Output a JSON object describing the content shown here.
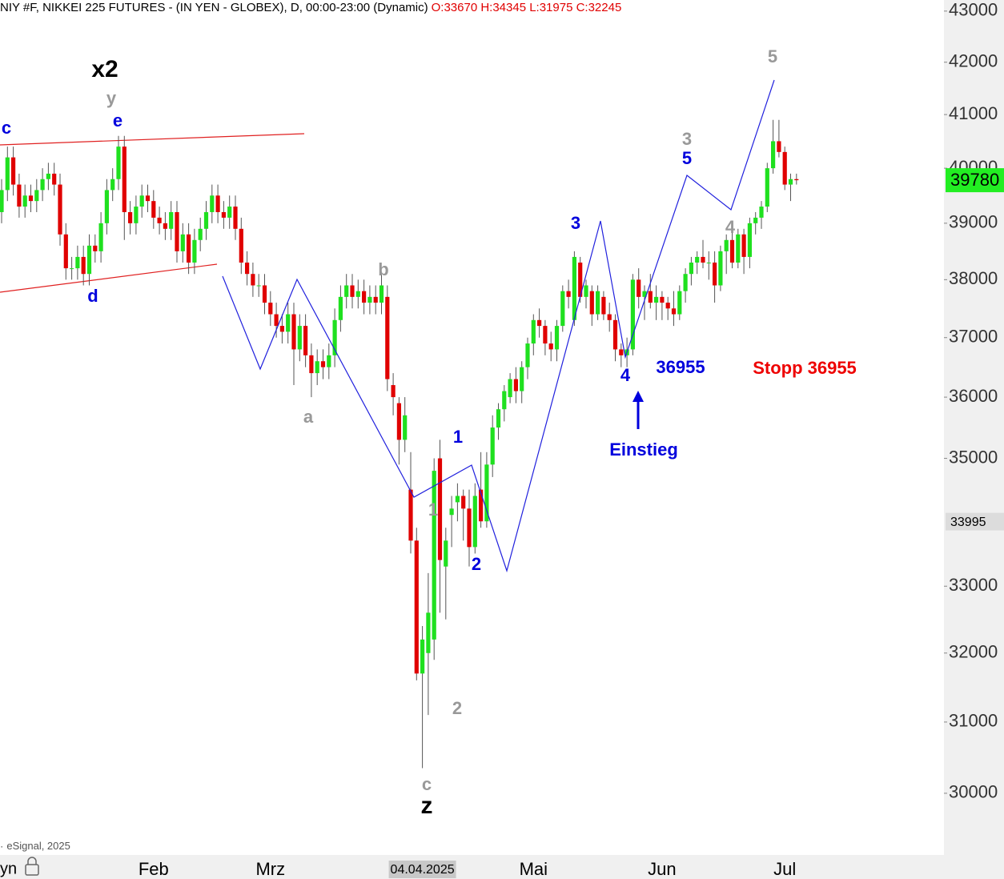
{
  "chart_data": {
    "type": "candlestick",
    "title": "NIY #F, NIKKEI 225 FUTURES - (IN YEN - GLOBEX), D, 00:00-23:00 (Dynamic)",
    "subtitle": "O:33670 H:34345 L:31975 C:32245",
    "credit": "eSignal, 2025",
    "footer_left": "yn",
    "log_scale": true,
    "grid": false,
    "up_color": "#1fe01f",
    "down_color": "#e00000",
    "ylim": [
      29160,
      43220
    ],
    "yticks": [
      30000,
      31000,
      32000,
      33000,
      35000,
      36000,
      37000,
      38000,
      39000,
      40000,
      41000,
      42000,
      43000
    ],
    "last_price": 39780,
    "last_price_color": "#22ee22",
    "marker_price": 33995,
    "categories": [
      null,
      null,
      null,
      null,
      null,
      null,
      null,
      null,
      null,
      null,
      null,
      null,
      null,
      null,
      null,
      null,
      null,
      null,
      null,
      null,
      null,
      null,
      null,
      null,
      null,
      null,
      "Feb",
      null,
      null,
      null,
      null,
      null,
      null,
      null,
      null,
      null,
      null,
      null,
      null,
      null,
      null,
      null,
      null,
      null,
      null,
      null,
      "Mrz",
      null,
      null,
      null,
      null,
      null,
      null,
      null,
      null,
      null,
      null,
      null,
      null,
      null,
      null,
      null,
      null,
      null,
      null,
      null,
      null,
      null,
      null,
      null,
      null,
      null,
      "04.04.2025",
      null,
      null,
      null,
      null,
      null,
      null,
      null,
      null,
      null,
      null,
      null,
      null,
      null,
      null,
      null,
      null,
      null,
      null,
      "Mai",
      null,
      null,
      null,
      null,
      null,
      null,
      null,
      null,
      null,
      null,
      null,
      null,
      null,
      null,
      null,
      null,
      null,
      null,
      null,
      null,
      null,
      "Jun",
      null,
      null,
      null,
      null,
      null,
      null,
      null,
      null,
      null,
      null,
      null,
      null,
      null,
      null,
      null,
      null,
      null,
      null,
      null,
      null,
      "Jul",
      null,
      null
    ],
    "open": [
      39200,
      39600,
      40200,
      39700,
      39300,
      39500,
      39400,
      39600,
      39800,
      39900,
      39700,
      38800,
      38200,
      38200,
      38400,
      38100,
      38600,
      38500,
      39000,
      39600,
      39800,
      40400,
      39200,
      39000,
      39300,
      39500,
      39400,
      39100,
      39000,
      38900,
      39200,
      38500,
      38800,
      38300,
      38700,
      38900,
      39200,
      39500,
      39200,
      39100,
      39300,
      38900,
      38300,
      38100,
      37900,
      37900,
      37600,
      37400,
      37200,
      37100,
      37400,
      36800,
      37200,
      36700,
      36400,
      36600,
      36500,
      36700,
      37300,
      37700,
      37900,
      37700,
      37800,
      37600,
      37700,
      37600,
      37700,
      36200,
      35900,
      35300,
      34500,
      33700,
      31700,
      32000,
      32200,
      35000,
      33300,
      34100,
      34300,
      34400,
      34200,
      33600,
      34500,
      34000,
      34900,
      35500,
      35800,
      36000,
      36300,
      36100,
      36500,
      36900,
      37300,
      37200,
      36900,
      36800,
      37200,
      37800,
      37300,
      38300,
      37700,
      37800,
      37400,
      37700,
      37400,
      37300,
      36800,
      36700,
      36800,
      38000,
      37700,
      37800,
      37600,
      37700,
      37600,
      37500,
      37400,
      37800,
      38100,
      38300,
      38400,
      38300,
      38300,
      37900,
      38500,
      38700,
      38300,
      38800,
      38400,
      39000,
      39100,
      39300,
      40000,
      40500,
      40300,
      39700,
      39800
    ],
    "high": [
      39800,
      40400,
      40400,
      39900,
      39700,
      39700,
      39800,
      40000,
      40100,
      40100,
      39900,
      39000,
      38400,
      38600,
      38600,
      38800,
      38800,
      39200,
      39800,
      40000,
      40600,
      40600,
      39400,
      39500,
      39700,
      39700,
      39600,
      39300,
      39200,
      39400,
      39400,
      39000,
      39000,
      38900,
      39100,
      39400,
      39700,
      39700,
      39400,
      39500,
      39500,
      39100,
      38500,
      38300,
      38100,
      38100,
      37800,
      37600,
      37400,
      37600,
      37600,
      37400,
      37400,
      36900,
      36800,
      36800,
      36900,
      37500,
      37900,
      38100,
      38100,
      38000,
      38000,
      37900,
      37900,
      38100,
      37900,
      36400,
      36000,
      36000,
      35100,
      33900,
      32400,
      33200,
      35000,
      35300,
      33900,
      34400,
      34600,
      34500,
      34500,
      34600,
      35100,
      35100,
      35700,
      35900,
      36200,
      36400,
      36500,
      36600,
      37000,
      37400,
      37500,
      37300,
      37100,
      37300,
      37900,
      38000,
      38500,
      38400,
      38000,
      37900,
      37900,
      37800,
      37600,
      37400,
      36900,
      37000,
      38100,
      38200,
      37900,
      38100,
      37900,
      37800,
      37700,
      37800,
      37900,
      38200,
      38400,
      38500,
      38700,
      38500,
      38500,
      38600,
      38800,
      38900,
      38900,
      38900,
      39100,
      39200,
      39400,
      40100,
      40900,
      40900,
      40400,
      39900,
      39900
    ],
    "low": [
      39000,
      39400,
      39500,
      39100,
      39100,
      39200,
      39200,
      39400,
      39600,
      39500,
      38600,
      38000,
      38000,
      38000,
      37900,
      37900,
      38300,
      38300,
      38800,
      39400,
      39600,
      38700,
      38800,
      38800,
      39100,
      39200,
      38900,
      38800,
      38700,
      38700,
      38300,
      38300,
      38100,
      38100,
      38500,
      38700,
      39000,
      39000,
      38900,
      38900,
      38700,
      38100,
      37900,
      37700,
      37700,
      37400,
      37200,
      37000,
      36900,
      36900,
      36200,
      36600,
      36500,
      36000,
      36200,
      36300,
      36300,
      36500,
      37100,
      37500,
      37500,
      37500,
      37400,
      37400,
      37400,
      37400,
      36100,
      35700,
      34900,
      35100,
      33500,
      31600,
      30350,
      31100,
      31900,
      32600,
      32500,
      33600,
      34000,
      33700,
      33300,
      33500,
      33900,
      33900,
      34700,
      35300,
      35600,
      35900,
      35900,
      35900,
      36300,
      36700,
      37000,
      36700,
      36600,
      36600,
      37100,
      37500,
      37200,
      37600,
      37500,
      37200,
      37300,
      37300,
      37100,
      36600,
      36500,
      36500,
      36700,
      37500,
      37300,
      37500,
      37300,
      37300,
      37300,
      37200,
      37300,
      37600,
      37900,
      38100,
      38200,
      38000,
      37600,
      37800,
      38100,
      38200,
      38200,
      38100,
      38200,
      38800,
      38900,
      39200,
      39900,
      40200,
      39600,
      39400,
      39700
    ],
    "close": [
      39600,
      40200,
      39700,
      39300,
      39500,
      39400,
      39600,
      39800,
      39900,
      39700,
      38800,
      38200,
      38200,
      38400,
      38100,
      38600,
      38500,
      39000,
      39600,
      39800,
      40400,
      39200,
      39000,
      39300,
      39500,
      39400,
      39100,
      39000,
      38900,
      39200,
      38500,
      38800,
      38300,
      38700,
      38900,
      39200,
      39500,
      39200,
      39100,
      39300,
      38900,
      38300,
      38100,
      37900,
      37900,
      37600,
      37400,
      37200,
      37100,
      37400,
      36800,
      37200,
      36700,
      36400,
      36600,
      36500,
      36700,
      37300,
      37700,
      37900,
      37700,
      37800,
      37600,
      37700,
      37600,
      37900,
      36300,
      36000,
      35300,
      35700,
      33700,
      31700,
      32200,
      32600,
      34800,
      33400,
      33700,
      34200,
      34400,
      34200,
      33600,
      34400,
      34000,
      34900,
      35500,
      35800,
      36100,
      36300,
      36100,
      36500,
      36900,
      37300,
      37200,
      36900,
      36800,
      37200,
      37800,
      37700,
      38400,
      37700,
      37900,
      37400,
      37800,
      37400,
      37300,
      36800,
      36700,
      36800,
      38000,
      37700,
      37800,
      37600,
      37700,
      37600,
      37500,
      37400,
      37800,
      38100,
      38300,
      38400,
      38300,
      38300,
      37900,
      38500,
      38700,
      38300,
      38800,
      38400,
      39000,
      39100,
      39300,
      40000,
      40500,
      40300,
      39700,
      39800,
      39780
    ],
    "annotations": [
      {
        "text": "x2",
        "color": "#000000"
      },
      {
        "text": "y",
        "color": "#999999"
      },
      {
        "text": "e",
        "color": "#0000dd"
      },
      {
        "text": "c",
        "color": "#0000dd"
      },
      {
        "text": "d",
        "color": "#0000dd"
      },
      {
        "text": "b",
        "color": "#999999"
      },
      {
        "text": "a",
        "color": "#999999"
      },
      {
        "text": "1",
        "color": "#0000dd"
      },
      {
        "text": "1",
        "color": "#999999"
      },
      {
        "text": "2",
        "color": "#0000dd"
      },
      {
        "text": "2",
        "color": "#999999"
      },
      {
        "text": "c",
        "color": "#999999"
      },
      {
        "text": "z",
        "color": "#000000"
      },
      {
        "text": "3",
        "color": "#0000dd"
      },
      {
        "text": "3",
        "color": "#999999"
      },
      {
        "text": "5",
        "color": "#0000dd"
      },
      {
        "text": "4",
        "color": "#999999"
      },
      {
        "text": "5",
        "color": "#999999"
      },
      {
        "text": "4",
        "color": "#0000dd"
      },
      {
        "text": "36955",
        "color": "#0000dd"
      },
      {
        "text": "Stopp 36955",
        "color": "#ee0000"
      },
      {
        "text": "Einstieg",
        "color": "#0000dd"
      }
    ]
  }
}
